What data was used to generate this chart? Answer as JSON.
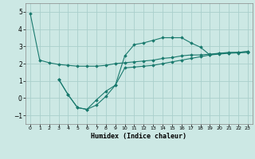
{
  "xlabel": "Humidex (Indice chaleur)",
  "bg_color": "#cce8e4",
  "line_color": "#1a7a6e",
  "grid_color": "#aacfcc",
  "xlim": [
    -0.5,
    23.5
  ],
  "ylim": [
    -1.5,
    5.5
  ],
  "xticks": [
    0,
    1,
    2,
    3,
    4,
    5,
    6,
    7,
    8,
    9,
    10,
    11,
    12,
    13,
    14,
    15,
    16,
    17,
    18,
    19,
    20,
    21,
    22,
    23
  ],
  "yticks": [
    -1,
    0,
    1,
    2,
    3,
    4,
    5
  ],
  "line1_x": [
    0,
    1,
    2,
    3,
    4,
    5,
    6,
    7,
    8,
    9,
    10,
    11,
    12,
    13,
    14,
    15,
    16,
    17,
    18,
    19,
    20,
    21,
    22,
    23
  ],
  "line1_y": [
    4.9,
    2.2,
    2.05,
    1.95,
    1.9,
    1.85,
    1.85,
    1.85,
    1.9,
    2.0,
    2.05,
    2.1,
    2.15,
    2.2,
    2.3,
    2.35,
    2.45,
    2.5,
    2.5,
    2.55,
    2.6,
    2.62,
    2.65,
    2.7
  ],
  "line2_x": [
    3,
    4,
    5,
    6,
    7,
    8,
    9,
    10,
    11,
    12,
    13,
    14,
    15,
    16,
    17,
    18,
    19,
    20,
    21,
    22,
    23
  ],
  "line2_y": [
    1.1,
    0.2,
    -0.55,
    -0.65,
    -0.1,
    0.4,
    0.75,
    1.75,
    1.8,
    1.85,
    1.9,
    2.0,
    2.1,
    2.2,
    2.3,
    2.4,
    2.5,
    2.55,
    2.6,
    2.62,
    2.65
  ],
  "line3_x": [
    3,
    4,
    5,
    6,
    7,
    8,
    9,
    10,
    11,
    12,
    13,
    14,
    15,
    16,
    17,
    18,
    19,
    20,
    21,
    22,
    23
  ],
  "line3_y": [
    1.1,
    0.2,
    -0.55,
    -0.65,
    -0.4,
    0.1,
    0.75,
    2.45,
    3.1,
    3.2,
    3.35,
    3.5,
    3.5,
    3.5,
    3.2,
    2.95,
    2.5,
    2.6,
    2.65,
    2.65,
    2.7
  ]
}
